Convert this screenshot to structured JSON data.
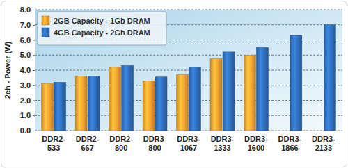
{
  "chart_data": {
    "type": "bar",
    "y_label": "2ch - Power (W)",
    "categories": [
      "DDR2-533",
      "DDR2-667",
      "DDR2-800",
      "DDR3-800",
      "DDR3-1067",
      "DDR3-1333",
      "DDR3-1600",
      "DDR3-1866",
      "DDR3-2133"
    ],
    "series": [
      {
        "name": "2GB Capacity - 1Gb DRAM",
        "color": "#f0a030",
        "values": [
          3.1,
          3.6,
          4.2,
          3.3,
          3.7,
          4.75,
          5.0,
          null,
          null
        ]
      },
      {
        "name": "4GB Capacity - 2Gb DRAM",
        "color": "#2f6db8",
        "values": [
          3.2,
          3.6,
          4.3,
          3.55,
          4.2,
          5.2,
          5.5,
          6.3,
          7.0
        ]
      }
    ],
    "ylim": [
      0,
      8
    ],
    "yticks": [
      {
        "value": 0,
        "label": "0.0"
      },
      {
        "value": 1,
        "label": "1.0"
      },
      {
        "value": 2,
        "label": "2.0"
      },
      {
        "value": 3,
        "label": "3.0"
      },
      {
        "value": 4,
        "label": "4.0"
      },
      {
        "value": 5,
        "label": "5.0"
      },
      {
        "value": 6,
        "label": "6.0"
      },
      {
        "value": 7,
        "label": "7.0"
      },
      {
        "value": 8,
        "label": "8.0"
      }
    ],
    "grid": true,
    "legend": "top-left"
  }
}
